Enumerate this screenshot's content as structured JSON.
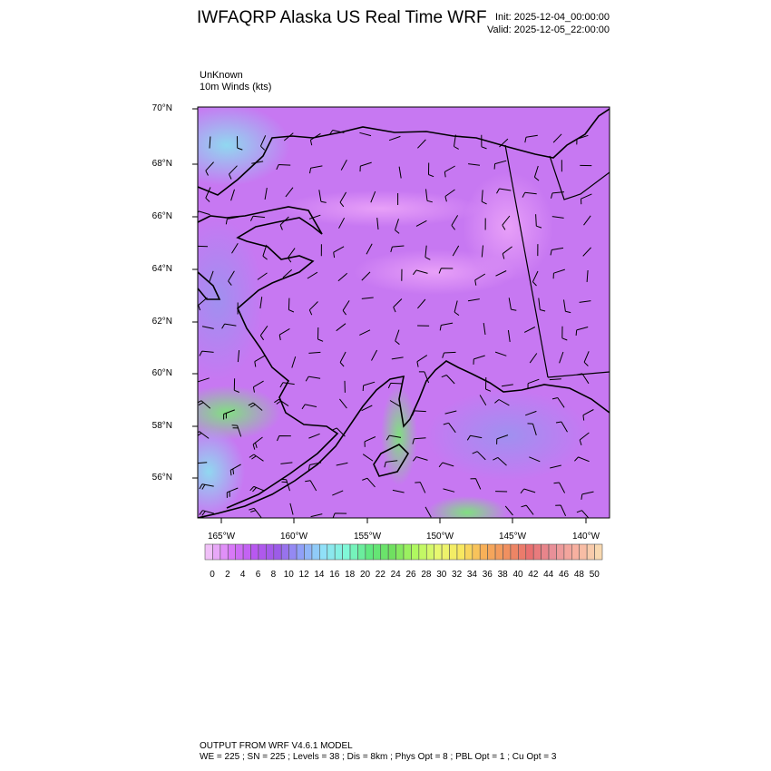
{
  "header": {
    "title": "IWFAQRP Alaska US Real Time WRF",
    "init": "Init: 2025-12-04_00:00:00",
    "valid": "Valid: 2025-12-05_22:00:00"
  },
  "plot": {
    "source_label": "UnKnown",
    "field_label": "10m Winds   (kts)",
    "lat_ticks": [
      "70°N",
      "68°N",
      "66°N",
      "64°N",
      "62°N",
      "60°N",
      "58°N",
      "56°N"
    ],
    "lon_ticks": [
      "165°W",
      "160°W",
      "155°W",
      "150°W",
      "145°W",
      "140°W"
    ]
  },
  "colorbar": {
    "labels": [
      "0",
      "2",
      "4",
      "6",
      "8",
      "10",
      "12",
      "14",
      "16",
      "18",
      "20",
      "22",
      "24",
      "26",
      "28",
      "30",
      "32",
      "34",
      "36",
      "38",
      "40",
      "42",
      "44",
      "46",
      "48",
      "50"
    ],
    "palette_anchors": [
      "#f0c0f8",
      "#d878f8",
      "#b858f0",
      "#9c5ce8",
      "#90a0f8",
      "#90e0f8",
      "#80f8d8",
      "#60e880",
      "#70e060",
      "#b0f860",
      "#e8f870",
      "#f8e860",
      "#f8b058",
      "#f09060",
      "#e87070",
      "#e89098",
      "#f8b0a0",
      "#f8d8b0"
    ]
  },
  "footer": {
    "line1": "OUTPUT FROM WRF V4.6.1 MODEL",
    "line2": "WE = 225 ; SN = 225 ; Levels = 38 ; Dis = 8km ; Phys Opt = 8 ; PBL Opt = 1 ; Cu Opt = 3"
  }
}
